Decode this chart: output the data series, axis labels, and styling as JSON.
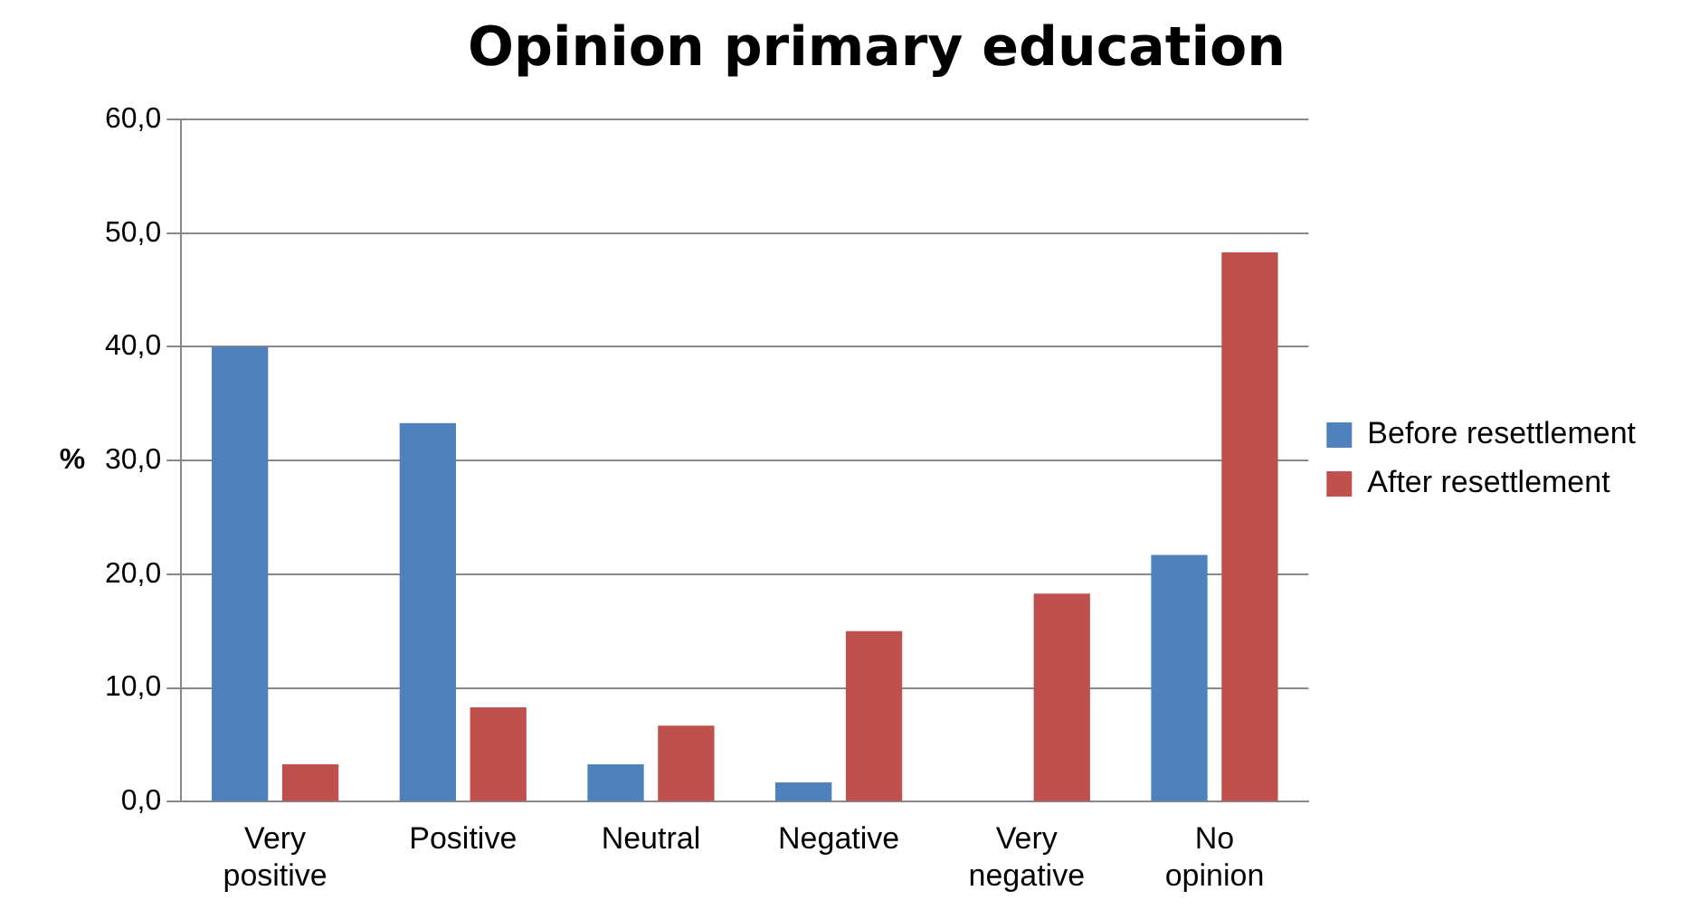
{
  "chart_data": {
    "type": "bar",
    "title": "Opinion primary education",
    "ylabel": "%",
    "categories": [
      "Very positive",
      "Positive",
      "Neutral",
      "Negative",
      "Very negative",
      "No opinion"
    ],
    "series": [
      {
        "name": "Before resettlement",
        "color": "#4f81bd",
        "values": [
          40.0,
          33.3,
          3.3,
          1.7,
          0,
          21.7
        ]
      },
      {
        "name": "After resettlement",
        "color": "#c0504d",
        "values": [
          3.3,
          8.3,
          6.7,
          15.0,
          18.3,
          48.3
        ]
      }
    ],
    "ylim": [
      0,
      60
    ],
    "yticks": [
      {
        "value": 0,
        "label": "0,0"
      },
      {
        "value": 10,
        "label": "10,0"
      },
      {
        "value": 20,
        "label": "20,0"
      },
      {
        "value": 30,
        "label": "30,0"
      },
      {
        "value": 40,
        "label": "40,0"
      },
      {
        "value": 50,
        "label": "50,0"
      },
      {
        "value": 60,
        "label": "60,0"
      }
    ],
    "grid": "y",
    "legend": "right"
  }
}
